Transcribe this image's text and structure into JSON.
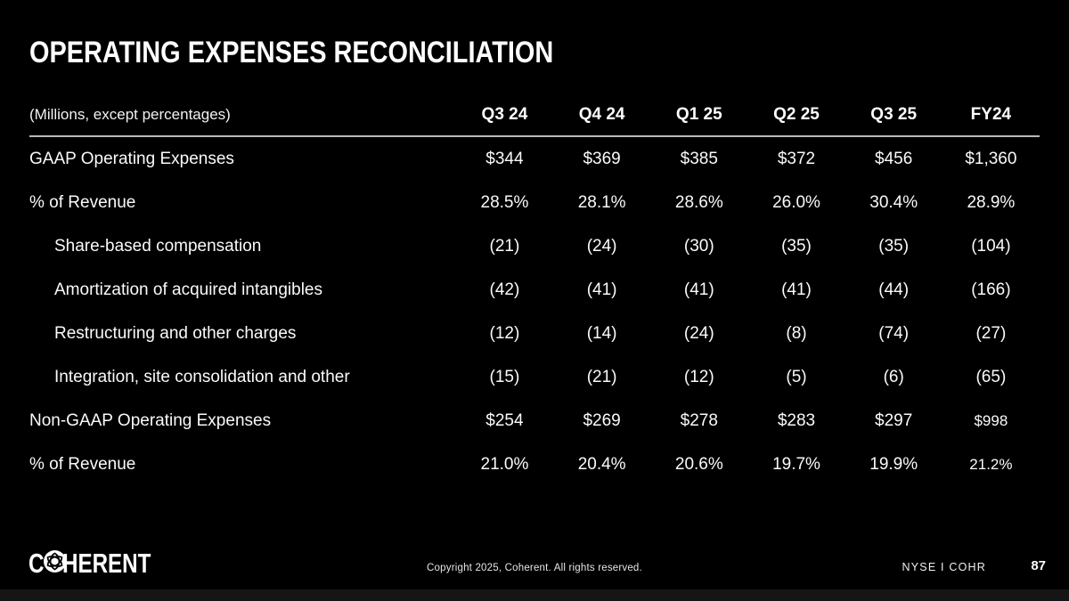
{
  "slide": {
    "title": "OPERATING EXPENSES RECONCILIATION"
  },
  "table": {
    "caption": "(Millions, except percentages)",
    "columns": [
      "Q3 24",
      "Q4 24",
      "Q1 25",
      "Q2 25",
      "Q3 25",
      "FY24"
    ],
    "rows": [
      {
        "label": "GAAP Operating Expenses",
        "indent": false,
        "values": [
          "$344",
          "$369",
          "$385",
          "$372",
          "$456",
          "$1,360"
        ]
      },
      {
        "label": "% of Revenue",
        "indent": false,
        "values": [
          "28.5%",
          "28.1%",
          "28.6%",
          "26.0%",
          "30.4%",
          "28.9%"
        ]
      },
      {
        "label": "Share-based compensation",
        "indent": true,
        "values": [
          "(21)",
          "(24)",
          "(30)",
          "(35)",
          "(35)",
          "(104)"
        ]
      },
      {
        "label": "Amortization of acquired intangibles",
        "indent": true,
        "values": [
          "(42)",
          "(41)",
          "(41)",
          "(41)",
          "(44)",
          "(166)"
        ]
      },
      {
        "label": "Restructuring and other charges",
        "indent": true,
        "values": [
          "(12)",
          "(14)",
          "(24)",
          "(8)",
          "(74)",
          "(27)"
        ]
      },
      {
        "label": "Integration, site consolidation and other",
        "indent": true,
        "values": [
          "(15)",
          "(21)",
          "(12)",
          "(5)",
          "(6)",
          "(65)"
        ]
      },
      {
        "label": "Non-GAAP Operating Expenses",
        "indent": false,
        "values": [
          "$254",
          "$269",
          "$278",
          "$283",
          "$297",
          "$998"
        ],
        "fy_small": true
      },
      {
        "label": "% of Revenue",
        "indent": false,
        "values": [
          "21.0%",
          "20.4%",
          "20.6%",
          "19.7%",
          "19.9%",
          "21.2%"
        ],
        "fy_small": true
      }
    ]
  },
  "footer": {
    "logo_c": "C",
    "logo_rest": "HERENT",
    "copyright": "Copyright 2025, Coherent. All rights reserved.",
    "ticker": "NYSE I COHR",
    "page_number": "87"
  },
  "colors": {
    "background": "#000000",
    "text": "#ffffff",
    "header_rule": "#b9b9b9",
    "bottom_strip": "#151515"
  }
}
